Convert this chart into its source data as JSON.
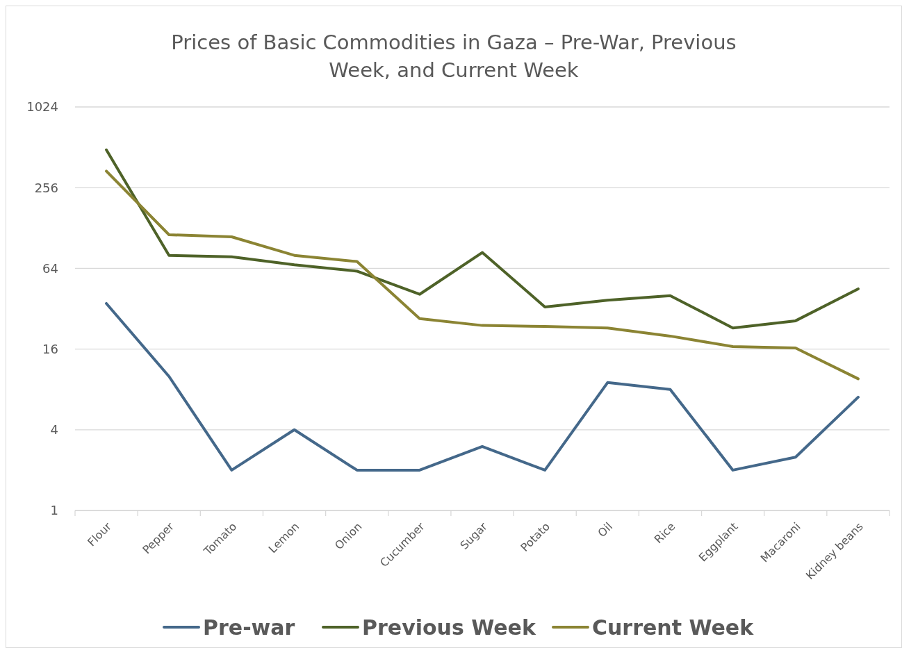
{
  "chart_data": {
    "type": "line",
    "title": "Prices of Basic Commodities in Gaza – Pre-War, Previous Week, and Current Week",
    "categories": [
      "Flour",
      "Pepper",
      "Tomato",
      "Lemon",
      "Onion",
      "Cucumber",
      "Sugar",
      "Potato",
      "Oil",
      "Rice",
      "Eggplant",
      "Macaroni",
      "Kidney beans"
    ],
    "series": [
      {
        "name": "Pre-war",
        "color": "#44688a",
        "values": [
          35,
          10,
          2,
          4,
          2,
          2,
          3,
          2,
          9,
          8,
          2,
          2.5,
          7
        ]
      },
      {
        "name": "Previous Week",
        "color": "#4e6228",
        "values": [
          490,
          80,
          78,
          68,
          61,
          41,
          84,
          33,
          37,
          40,
          23,
          26,
          45
        ]
      },
      {
        "name": "Current Week",
        "color": "#8b8433",
        "values": [
          340,
          114,
          110,
          80,
          72,
          27,
          24,
          23.6,
          23,
          20,
          16.7,
          16.3,
          9.6
        ]
      }
    ],
    "log": true,
    "ylim": [
      1,
      1024
    ],
    "yticks": [
      1,
      4,
      16,
      64,
      256,
      1024
    ],
    "grid": "y",
    "legend": "bottom",
    "marker": "none",
    "line_style": "solid"
  }
}
